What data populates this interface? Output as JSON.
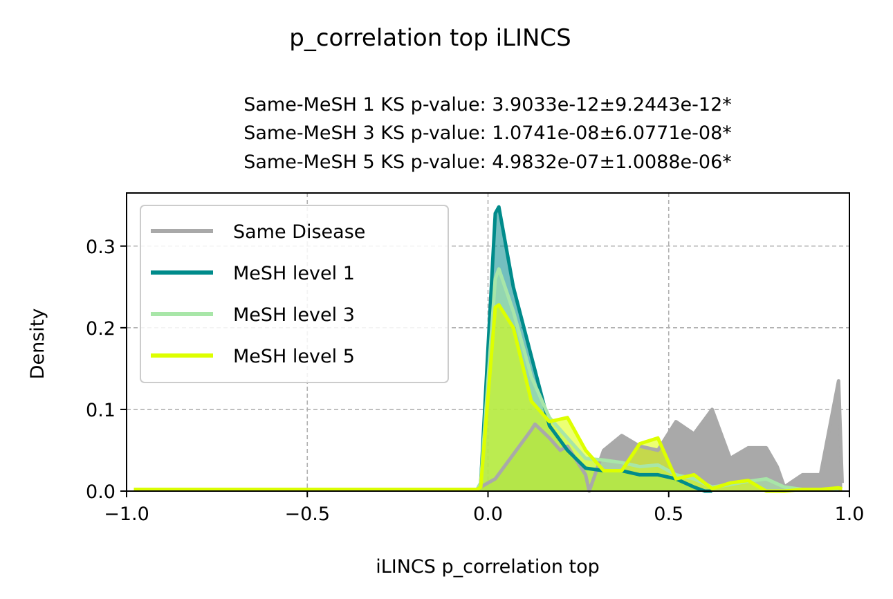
{
  "chart_data": {
    "type": "area",
    "title": "p_correlation top iLINCS",
    "subtitle_lines": [
      "Same-MeSH 1 KS p-value: 3.9033e-12±9.2443e-12*",
      "Same-MeSH 3 KS p-value: 1.0741e-08±6.0771e-08*",
      "Same-MeSH 5 KS p-value: 4.9832e-07±1.0088e-06*"
    ],
    "xlabel": "iLINCS p_correlation top",
    "ylabel": "Density",
    "xlim": [
      -1.0,
      1.0
    ],
    "ylim": [
      0.0,
      0.365
    ],
    "xticks": [
      -1.0,
      -0.5,
      0.0,
      0.5,
      1.0
    ],
    "xtick_labels": [
      "−1.0",
      "−0.5",
      "0.0",
      "0.5",
      "1.0"
    ],
    "yticks": [
      0.0,
      0.1,
      0.2,
      0.3
    ],
    "ytick_labels": [
      "0.0",
      "0.1",
      "0.2",
      "0.3"
    ],
    "grid": true,
    "legend_position": "upper-left",
    "series": [
      {
        "name": "Same Disease",
        "color": "#a9a9a9",
        "fill_opacity": 1.0,
        "x": [
          -0.98,
          -0.03,
          -0.02,
          0.02,
          0.07,
          0.12,
          0.13,
          0.17,
          0.2,
          0.22,
          0.27,
          0.28,
          0.32,
          0.37,
          0.42,
          0.47,
          0.52,
          0.57,
          0.62,
          0.67,
          0.72,
          0.77,
          0.8,
          0.82,
          0.87,
          0.92,
          0.97,
          0.98
        ],
        "y": [
          0.002,
          0.002,
          0.005,
          0.015,
          0.045,
          0.075,
          0.082,
          0.065,
          0.05,
          0.055,
          0.02,
          0.0,
          0.05,
          0.068,
          0.055,
          0.05,
          0.085,
          0.07,
          0.1,
          0.04,
          0.053,
          0.053,
          0.03,
          0.005,
          0.02,
          0.02,
          0.135,
          0.01
        ]
      },
      {
        "name": "MeSH level 1",
        "color": "#008b8b",
        "fill_opacity": 0.55,
        "x": [
          -0.98,
          -0.03,
          -0.02,
          0.02,
          0.03,
          0.07,
          0.12,
          0.17,
          0.22,
          0.27,
          0.32,
          0.37,
          0.42,
          0.47,
          0.52,
          0.57,
          0.6,
          0.62
        ],
        "y": [
          0.002,
          0.002,
          0.01,
          0.34,
          0.348,
          0.25,
          0.165,
          0.08,
          0.05,
          0.028,
          0.025,
          0.025,
          0.02,
          0.02,
          0.015,
          0.005,
          0.0,
          0.0
        ]
      },
      {
        "name": "MeSH level 3",
        "color": "#a8e6a8",
        "fill_opacity": 0.6,
        "x": [
          -0.98,
          -0.03,
          -0.02,
          0.02,
          0.03,
          0.07,
          0.12,
          0.17,
          0.22,
          0.27,
          0.32,
          0.37,
          0.42,
          0.47,
          0.52,
          0.57,
          0.62,
          0.67,
          0.72,
          0.77,
          0.82,
          0.87,
          0.92,
          0.97
        ],
        "y": [
          0.002,
          0.002,
          0.01,
          0.26,
          0.272,
          0.22,
          0.14,
          0.09,
          0.065,
          0.04,
          0.038,
          0.035,
          0.03,
          0.032,
          0.02,
          0.015,
          0.005,
          0.008,
          0.012,
          0.015,
          0.005,
          0.002,
          0.002,
          0.002
        ]
      },
      {
        "name": "MeSH level 5",
        "color": "#ddff00",
        "fill_opacity": 0.55,
        "x": [
          -0.98,
          -0.03,
          -0.02,
          0.02,
          0.03,
          0.07,
          0.12,
          0.17,
          0.22,
          0.27,
          0.32,
          0.37,
          0.42,
          0.47,
          0.52,
          0.57,
          0.62,
          0.67,
          0.72,
          0.75,
          0.77,
          0.82,
          0.87,
          0.92,
          0.97,
          0.98
        ],
        "y": [
          0.002,
          0.002,
          0.005,
          0.225,
          0.228,
          0.2,
          0.11,
          0.085,
          0.09,
          0.05,
          0.025,
          0.025,
          0.058,
          0.065,
          0.015,
          0.02,
          0.003,
          0.01,
          0.013,
          0.005,
          0.0,
          0.0,
          0.002,
          0.002,
          0.004,
          0.003
        ]
      }
    ]
  }
}
